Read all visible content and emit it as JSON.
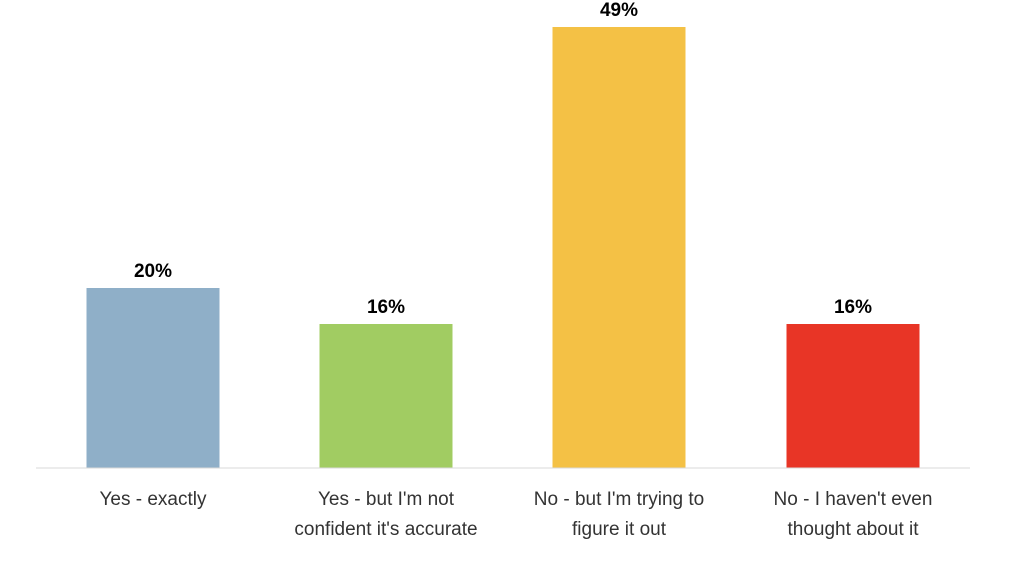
{
  "chart_data": {
    "type": "bar",
    "categories": [
      [
        "Yes - exactly"
      ],
      [
        "Yes - but I'm not",
        "confident it's accurate"
      ],
      [
        "No - but I'm trying to",
        "figure it out"
      ],
      [
        "No - I haven't even",
        "thought about it"
      ]
    ],
    "values": [
      20,
      16,
      49,
      16
    ],
    "value_labels": [
      "20%",
      "16%",
      "49%",
      "16%"
    ],
    "colors": [
      "#8FAFC8",
      "#A1CC62",
      "#F4C145",
      "#E83526"
    ],
    "ylim": [
      0,
      50
    ],
    "grid": false,
    "legend": "none"
  }
}
